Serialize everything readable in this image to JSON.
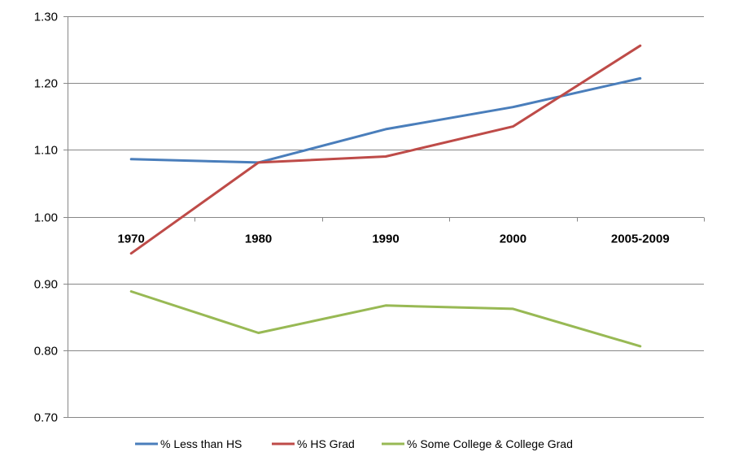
{
  "chart_data": {
    "type": "line",
    "categories": [
      "1970",
      "1980",
      "1990",
      "2000",
      "2005-2009"
    ],
    "series": [
      {
        "name": "% Less than HS",
        "color": "#4a7ebb",
        "values": [
          1.086,
          1.081,
          1.131,
          1.164,
          1.207
        ]
      },
      {
        "name": "% HS Grad",
        "color": "#be4b48",
        "values": [
          0.945,
          1.081,
          1.09,
          1.135,
          1.256
        ]
      },
      {
        "name": "% Some College & College Grad",
        "color": "#98b954",
        "values": [
          0.888,
          0.826,
          0.867,
          0.862,
          0.806
        ]
      }
    ],
    "ylim": [
      0.7,
      1.3
    ],
    "yticks": [
      "0.70",
      "0.80",
      "0.90",
      "1.00",
      "1.10",
      "1.20",
      "1.30"
    ],
    "x_axis_crosses_at": 1.0,
    "grid": true,
    "legend": "bottom",
    "gridline_color": "#878787",
    "axis_color": "#878787"
  }
}
